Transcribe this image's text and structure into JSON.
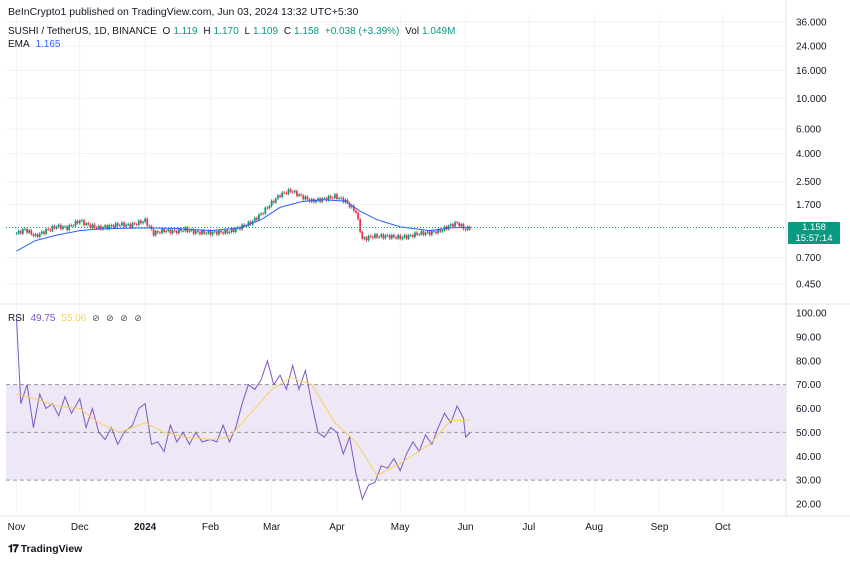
{
  "header": {
    "publisher": "BeInCrypto1 published on TradingView.com, Jun 03, 2024 13:32 UTC+5:30",
    "symbol": "SUSHI / TetherUS, 1D, BINANCE",
    "o_label": "O",
    "o_value": "1.119",
    "h_label": "H",
    "h_value": "1.170",
    "l_label": "L",
    "l_value": "1.109",
    "c_label": "C",
    "c_value": "1.158",
    "change": "+0.038 (+3.39%)",
    "vol_label": "Vol",
    "vol_value": "1.049M",
    "ema_label": "EMA",
    "ema_value": "1.165"
  },
  "rsi_legend": {
    "label": "RSI",
    "value": "49.75",
    "ma_value": "55.06",
    "icons": "⊘ ⊘ ⊘ ⊘"
  },
  "price_tag": {
    "price": "1.158",
    "countdown": "15:57:14"
  },
  "footer": {
    "logo_text": "TradingView"
  },
  "colors": {
    "up": "#089981",
    "down": "#f23645",
    "ema": "#2962ff",
    "rsi": "#7e57c2",
    "rsi_ma": "#f7d25c",
    "rsi_band": "#ede7f6"
  },
  "chart_data": [
    {
      "type": "candlestick",
      "title": "SUSHI / TetherUS, 1D, BINANCE",
      "y_scale": "log",
      "y_ticks": [
        "36.000",
        "24.000",
        "16.000",
        "10.000",
        "6.000",
        "4.000",
        "2.500",
        "1.700",
        "1.158",
        "0.700",
        "0.450"
      ],
      "x_ticks": [
        "Nov",
        "Dec",
        "2024",
        "Feb",
        "Mar",
        "Apr",
        "May",
        "Jun",
        "Jul",
        "Aug",
        "Sep",
        "Oct"
      ],
      "x_tick_dates": [
        "2023-11-01",
        "2023-12-01",
        "2024-01-01",
        "2024-02-01",
        "2024-03-01",
        "2024-04-01",
        "2024-05-01",
        "2024-06-01",
        "2024-07-01",
        "2024-08-01",
        "2024-09-01",
        "2024-10-01"
      ],
      "last_price": 1.158,
      "ema_series": [
        [
          "2023-11-01",
          0.78
        ],
        [
          "2023-11-10",
          0.93
        ],
        [
          "2023-11-20",
          1.02
        ],
        [
          "2023-12-01",
          1.1
        ],
        [
          "2023-12-10",
          1.13
        ],
        [
          "2023-12-20",
          1.14
        ],
        [
          "2024-01-01",
          1.15
        ],
        [
          "2024-01-15",
          1.14
        ],
        [
          "2024-02-01",
          1.1
        ],
        [
          "2024-02-15",
          1.15
        ],
        [
          "2024-02-25",
          1.32
        ],
        [
          "2024-03-05",
          1.62
        ],
        [
          "2024-03-15",
          1.78
        ],
        [
          "2024-03-25",
          1.84
        ],
        [
          "2024-04-05",
          1.8
        ],
        [
          "2024-04-12",
          1.52
        ],
        [
          "2024-04-20",
          1.32
        ],
        [
          "2024-05-01",
          1.17
        ],
        [
          "2024-05-15",
          1.1
        ],
        [
          "2024-05-25",
          1.15
        ],
        [
          "2024-06-03",
          1.165
        ]
      ],
      "close_series": [
        [
          "2023-11-01",
          1.05
        ],
        [
          "2023-11-05",
          1.12
        ],
        [
          "2023-11-10",
          1.0
        ],
        [
          "2023-11-15",
          1.1
        ],
        [
          "2023-11-20",
          1.18
        ],
        [
          "2023-11-25",
          1.15
        ],
        [
          "2023-12-01",
          1.3
        ],
        [
          "2023-12-05",
          1.2
        ],
        [
          "2023-12-10",
          1.15
        ],
        [
          "2023-12-15",
          1.18
        ],
        [
          "2023-12-20",
          1.22
        ],
        [
          "2023-12-25",
          1.2
        ],
        [
          "2024-01-01",
          1.3
        ],
        [
          "2024-01-05",
          1.05
        ],
        [
          "2024-01-10",
          1.1
        ],
        [
          "2024-01-15",
          1.08
        ],
        [
          "2024-01-20",
          1.12
        ],
        [
          "2024-01-25",
          1.07
        ],
        [
          "2024-02-01",
          1.06
        ],
        [
          "2024-02-10",
          1.08
        ],
        [
          "2024-02-20",
          1.25
        ],
        [
          "2024-02-25",
          1.45
        ],
        [
          "2024-03-01",
          1.75
        ],
        [
          "2024-03-05",
          2.0
        ],
        [
          "2024-03-10",
          2.15
        ],
        [
          "2024-03-15",
          1.95
        ],
        [
          "2024-03-20",
          1.8
        ],
        [
          "2024-03-25",
          1.85
        ],
        [
          "2024-03-31",
          1.95
        ],
        [
          "2024-04-05",
          1.8
        ],
        [
          "2024-04-10",
          1.5
        ],
        [
          "2024-04-13",
          0.95
        ],
        [
          "2024-04-18",
          1.0
        ],
        [
          "2024-04-25",
          1.0
        ],
        [
          "2024-05-01",
          0.98
        ],
        [
          "2024-05-05",
          1.0
        ],
        [
          "2024-05-10",
          1.05
        ],
        [
          "2024-05-15",
          1.06
        ],
        [
          "2024-05-20",
          1.1
        ],
        [
          "2024-05-25",
          1.2
        ],
        [
          "2024-05-28",
          1.25
        ],
        [
          "2024-06-01",
          1.12
        ],
        [
          "2024-06-03",
          1.158
        ]
      ]
    },
    {
      "type": "line",
      "title": "RSI",
      "y_ticks": [
        "100.00",
        "90.00",
        "80.00",
        "70.00",
        "60.00",
        "50.00",
        "40.00",
        "30.00",
        "20.00"
      ],
      "ylim": [
        17,
        100
      ],
      "bands": [
        30,
        50,
        70
      ],
      "series": [
        {
          "name": "RSI",
          "values": [
            [
              "2023-11-01",
              98
            ],
            [
              "2023-11-03",
              62
            ],
            [
              "2023-11-06",
              70
            ],
            [
              "2023-11-09",
              52
            ],
            [
              "2023-11-12",
              66
            ],
            [
              "2023-11-15",
              60
            ],
            [
              "2023-11-18",
              62
            ],
            [
              "2023-11-21",
              57
            ],
            [
              "2023-11-24",
              65
            ],
            [
              "2023-11-27",
              58
            ],
            [
              "2023-12-01",
              64
            ],
            [
              "2023-12-04",
              52
            ],
            [
              "2023-12-07",
              60
            ],
            [
              "2023-12-10",
              50
            ],
            [
              "2023-12-13",
              47
            ],
            [
              "2023-12-16",
              52
            ],
            [
              "2023-12-19",
              45
            ],
            [
              "2023-12-22",
              50
            ],
            [
              "2023-12-26",
              53
            ],
            [
              "2023-12-29",
              60
            ],
            [
              "2024-01-01",
              62
            ],
            [
              "2024-01-04",
              45
            ],
            [
              "2024-01-07",
              46
            ],
            [
              "2024-01-10",
              42
            ],
            [
              "2024-01-13",
              53
            ],
            [
              "2024-01-16",
              46
            ],
            [
              "2024-01-19",
              50
            ],
            [
              "2024-01-22",
              45
            ],
            [
              "2024-01-25",
              50
            ],
            [
              "2024-01-28",
              46
            ],
            [
              "2024-02-01",
              47
            ],
            [
              "2024-02-04",
              46
            ],
            [
              "2024-02-07",
              53
            ],
            [
              "2024-02-10",
              46
            ],
            [
              "2024-02-13",
              52
            ],
            [
              "2024-02-16",
              62
            ],
            [
              "2024-02-19",
              70
            ],
            [
              "2024-02-22",
              68
            ],
            [
              "2024-02-25",
              72
            ],
            [
              "2024-02-28",
              80
            ],
            [
              "2024-03-02",
              70
            ],
            [
              "2024-03-05",
              74
            ],
            [
              "2024-03-08",
              68
            ],
            [
              "2024-03-11",
              78
            ],
            [
              "2024-03-14",
              68
            ],
            [
              "2024-03-17",
              76
            ],
            [
              "2024-03-20",
              62
            ],
            [
              "2024-03-23",
              50
            ],
            [
              "2024-03-26",
              48
            ],
            [
              "2024-03-29",
              52
            ],
            [
              "2024-04-01",
              50
            ],
            [
              "2024-04-04",
              41
            ],
            [
              "2024-04-07",
              48
            ],
            [
              "2024-04-10",
              33
            ],
            [
              "2024-04-13",
              22
            ],
            [
              "2024-04-16",
              28
            ],
            [
              "2024-04-19",
              29
            ],
            [
              "2024-04-22",
              36
            ],
            [
              "2024-04-25",
              35
            ],
            [
              "2024-04-28",
              39
            ],
            [
              "2024-05-01",
              34
            ],
            [
              "2024-05-04",
              41
            ],
            [
              "2024-05-07",
              46
            ],
            [
              "2024-05-10",
              42
            ],
            [
              "2024-05-13",
              49
            ],
            [
              "2024-05-16",
              45
            ],
            [
              "2024-05-19",
              52
            ],
            [
              "2024-05-22",
              58
            ],
            [
              "2024-05-25",
              54
            ],
            [
              "2024-05-28",
              61
            ],
            [
              "2024-05-31",
              56
            ],
            [
              "2024-06-01",
              48
            ],
            [
              "2024-06-03",
              49.75
            ]
          ]
        },
        {
          "name": "RSI-based MA",
          "values": [
            [
              "2023-11-01",
              66
            ],
            [
              "2023-11-10",
              64
            ],
            [
              "2023-11-20",
              61
            ],
            [
              "2023-12-01",
              60
            ],
            [
              "2023-12-10",
              54
            ],
            [
              "2023-12-20",
              50
            ],
            [
              "2024-01-01",
              54
            ],
            [
              "2024-01-10",
              50
            ],
            [
              "2024-01-20",
              48
            ],
            [
              "2024-02-01",
              47
            ],
            [
              "2024-02-10",
              48
            ],
            [
              "2024-02-20",
              58
            ],
            [
              "2024-03-01",
              68
            ],
            [
              "2024-03-10",
              73
            ],
            [
              "2024-03-20",
              70
            ],
            [
              "2024-03-31",
              54
            ],
            [
              "2024-04-10",
              46
            ],
            [
              "2024-04-20",
              32
            ],
            [
              "2024-05-01",
              37
            ],
            [
              "2024-05-15",
              45
            ],
            [
              "2024-05-25",
              55
            ],
            [
              "2024-06-03",
              55.06
            ]
          ]
        }
      ]
    }
  ]
}
